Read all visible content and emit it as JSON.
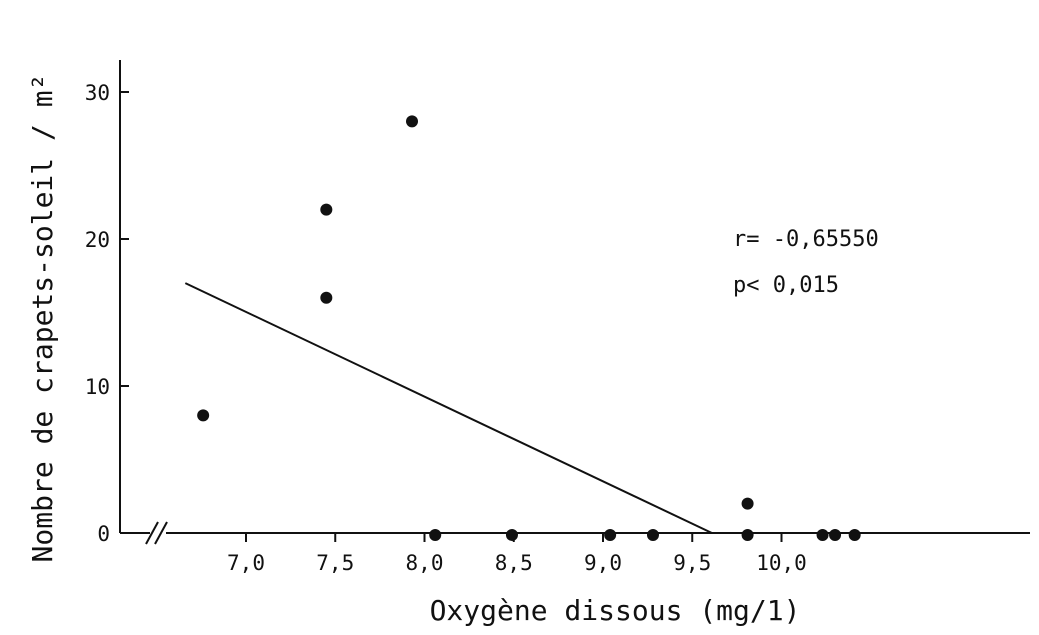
{
  "chart_data": {
    "type": "scatter",
    "title": "",
    "xlabel": "Oxygène dissous (mg/1)",
    "ylabel": "Nombre de crapets-soleil / m²",
    "x_ticks": [
      "7,0",
      "7,5",
      "8,0",
      "8,5",
      "9,0",
      "9,5",
      "10,0"
    ],
    "y_ticks": [
      "0",
      "10",
      "20",
      "30"
    ],
    "xlim": [
      6.55,
      10.65
    ],
    "ylim": [
      0,
      32
    ],
    "axis_break": true,
    "grid": false,
    "points": [
      {
        "x": 6.76,
        "y": 8
      },
      {
        "x": 7.45,
        "y": 22
      },
      {
        "x": 7.45,
        "y": 16
      },
      {
        "x": 7.93,
        "y": 28
      },
      {
        "x": 8.06,
        "y": 0
      },
      {
        "x": 8.49,
        "y": 0
      },
      {
        "x": 9.04,
        "y": 0
      },
      {
        "x": 9.28,
        "y": 0
      },
      {
        "x": 9.81,
        "y": 2
      },
      {
        "x": 9.81,
        "y": 0
      },
      {
        "x": 10.23,
        "y": 0
      },
      {
        "x": 10.3,
        "y": 0
      },
      {
        "x": 10.41,
        "y": 0
      }
    ],
    "regression_line": {
      "x": [
        6.66,
        9.61
      ],
      "y": [
        17,
        0
      ]
    },
    "annotations": {
      "r": "r= -0,65550",
      "p": "p< 0,015"
    }
  }
}
